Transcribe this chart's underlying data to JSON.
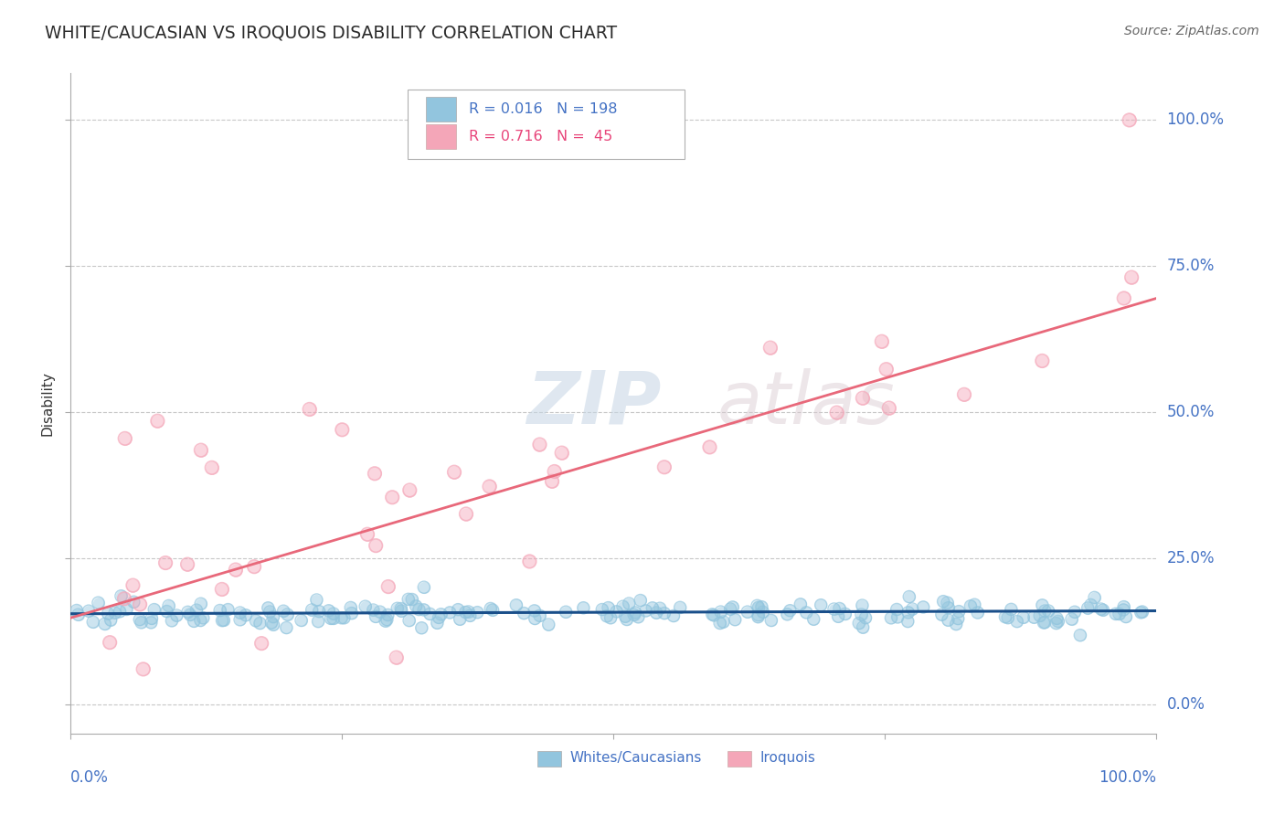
{
  "title": "WHITE/CAUCASIAN VS IROQUOIS DISABILITY CORRELATION CHART",
  "source": "Source: ZipAtlas.com",
  "ylabel": "Disability",
  "ytick_labels": [
    "0.0%",
    "25.0%",
    "50.0%",
    "75.0%",
    "100.0%"
  ],
  "ytick_values": [
    0.0,
    0.25,
    0.5,
    0.75,
    1.0
  ],
  "xlim": [
    0.0,
    1.0
  ],
  "ylim": [
    -0.05,
    1.08
  ],
  "blue_color": "#92c5de",
  "pink_color": "#f4a6b8",
  "blue_line_color": "#1a4f8a",
  "pink_line_color": "#e8687a",
  "axis_label_color": "#4472c4",
  "pink_text_color": "#e8457a",
  "watermark_color": "#d0dff0",
  "background_color": "#ffffff",
  "grid_color": "#c8c8c8",
  "blue_line_y0": 0.155,
  "blue_line_y1": 0.16,
  "pink_line_y0": 0.148,
  "pink_line_y1": 0.695
}
